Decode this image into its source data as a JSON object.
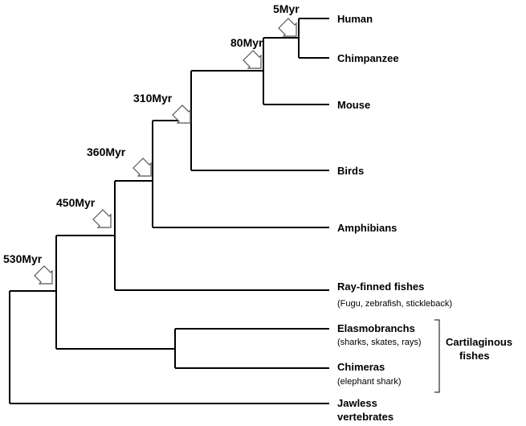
{
  "taxa": {
    "human": "Human",
    "chimpanzee": "Chimpanzee",
    "mouse": "Mouse",
    "birds": "Birds",
    "amphibians": "Amphibians",
    "ray_finned": "Ray-finned fishes",
    "ray_finned_examples": "(Fugu, zebrafish, stickleback)",
    "elasmobranchs": "Elasmobranchs",
    "elasmobranchs_examples": "(sharks, skates, rays)",
    "chimeras": "Chimeras",
    "chimeras_examples": "(elephant shark)",
    "jawless_line1": "Jawless",
    "jawless_line2": "vertebrates"
  },
  "group": {
    "cartilaginous_line1": "Cartilaginous",
    "cartilaginous_line2": "fishes"
  },
  "divergence_times": {
    "t5": "5Myr",
    "t80": "80Myr",
    "t310": "310Myr",
    "t360": "360Myr",
    "t450": "450Myr",
    "t530": "530Myr"
  },
  "icons": {
    "divergence_marker": "hollow-arrow-icon"
  }
}
